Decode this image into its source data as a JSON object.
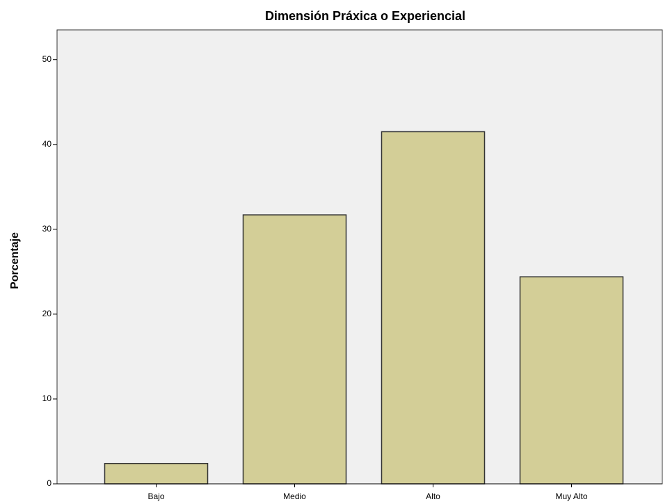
{
  "chart_data": {
    "type": "bar",
    "title": "Dimensión Práxica o Experiencial",
    "y_label": "Porcentaje",
    "categories": [
      "Bajo",
      "Medio",
      "Alto",
      "Muy Alto"
    ],
    "values": [
      2.4,
      31.7,
      41.5,
      24.4
    ],
    "color": "#d3ce97",
    "ylim": [
      0,
      53.5
    ],
    "yticks": [
      0,
      10,
      20,
      30,
      40,
      50
    ],
    "grid": false
  }
}
